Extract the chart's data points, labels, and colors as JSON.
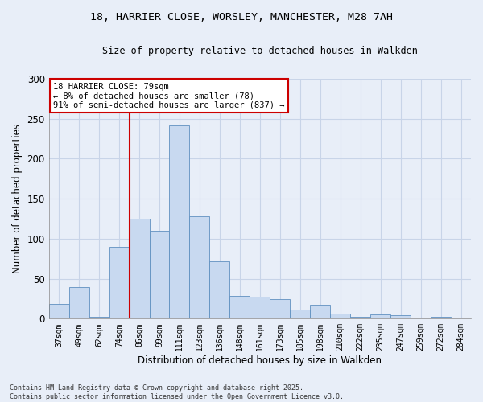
{
  "title_line1": "18, HARRIER CLOSE, WORSLEY, MANCHESTER, M28 7AH",
  "title_line2": "Size of property relative to detached houses in Walkden",
  "xlabel": "Distribution of detached houses by size in Walkden",
  "ylabel": "Number of detached properties",
  "categories": [
    "37sqm",
    "49sqm",
    "62sqm",
    "74sqm",
    "86sqm",
    "99sqm",
    "111sqm",
    "123sqm",
    "136sqm",
    "148sqm",
    "161sqm",
    "173sqm",
    "185sqm",
    "198sqm",
    "210sqm",
    "222sqm",
    "235sqm",
    "247sqm",
    "259sqm",
    "272sqm",
    "284sqm"
  ],
  "values": [
    18,
    40,
    2,
    90,
    125,
    110,
    242,
    128,
    72,
    28,
    27,
    24,
    11,
    17,
    6,
    2,
    5,
    4,
    1,
    2,
    1
  ],
  "bar_color": "#c8d9f0",
  "bar_edge_color": "#6090c0",
  "background_color": "#e8eef8",
  "grid_color": "#d0d8e8",
  "vline_x": 3.5,
  "vline_color": "#cc0000",
  "annotation_text": "18 HARRIER CLOSE: 79sqm\n← 8% of detached houses are smaller (78)\n91% of semi-detached houses are larger (837) →",
  "annotation_box_color": "#ffffff",
  "annotation_box_edge_color": "#cc0000",
  "footer_text": "Contains HM Land Registry data © Crown copyright and database right 2025.\nContains public sector information licensed under the Open Government Licence v3.0.",
  "ylim": [
    0,
    300
  ],
  "yticks": [
    0,
    50,
    100,
    150,
    200,
    250,
    300
  ],
  "fig_bg": "#e8eef8"
}
